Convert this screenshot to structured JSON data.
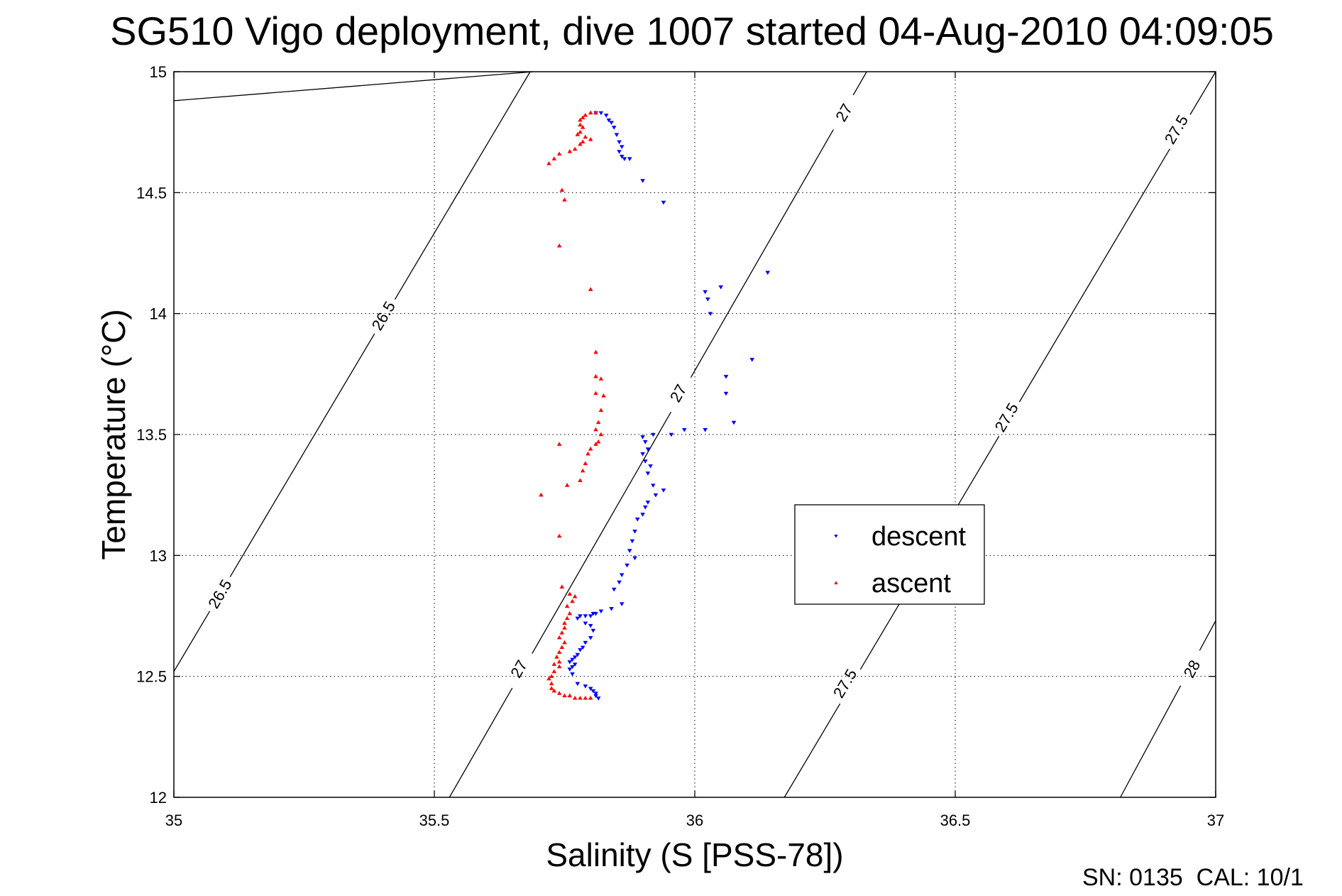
{
  "chart_data": {
    "type": "scatter",
    "title": "SG510 Vigo deployment, dive 1007 started 04-Aug-2010 04:09:05",
    "xlabel": "Salinity (S [PSS-78])",
    "ylabel": "Temperature (°C)",
    "xlim": [
      35,
      37
    ],
    "ylim": [
      12,
      15
    ],
    "xticks": [
      "35",
      "35.5",
      "36",
      "36.5",
      "37"
    ],
    "yticks": [
      "12",
      "12.5",
      "13",
      "13.5",
      "14",
      "14.5",
      "15"
    ],
    "grid": true,
    "legend_position": "center-right",
    "footer": "SN: 0135  CAL: 10/1",
    "contours": [
      {
        "label": "26.5",
        "points": [
          [
            35.0,
            14.88
          ],
          [
            35.69,
            15.0
          ]
        ],
        "labels_at": []
      },
      {
        "label": "26.5",
        "points": [
          [
            35.0,
            12.52
          ],
          [
            35.684,
            15.0
          ]
        ],
        "labels_at": [
          [
            35.403,
            13.99
          ],
          [
            35.089,
            12.84
          ]
        ]
      },
      {
        "label": "27",
        "points": [
          [
            35.529,
            12.0
          ],
          [
            36.33,
            15.0
          ]
        ],
        "labels_at": [
          [
            36.287,
            14.83
          ],
          [
            35.969,
            13.67
          ],
          [
            35.663,
            12.53
          ]
        ]
      },
      {
        "label": "27.5",
        "points": [
          [
            36.172,
            12.0
          ],
          [
            37.0,
            15.0
          ]
        ],
        "labels_at": [
          [
            36.925,
            14.76
          ],
          [
            36.599,
            13.57
          ],
          [
            36.289,
            12.47
          ]
        ]
      },
      {
        "label": "28",
        "points": [
          [
            36.817,
            12.0
          ],
          [
            37.0,
            12.73
          ]
        ],
        "labels_at": [
          [
            36.955,
            12.53
          ]
        ]
      }
    ],
    "series": [
      {
        "name": "descent",
        "color": "#0000ff",
        "marker": "triangle-down",
        "points": [
          [
            35.81,
            14.83
          ],
          [
            35.82,
            14.83
          ],
          [
            35.83,
            14.82
          ],
          [
            35.835,
            14.8
          ],
          [
            35.84,
            14.79
          ],
          [
            35.845,
            14.77
          ],
          [
            35.85,
            14.74
          ],
          [
            35.855,
            14.71
          ],
          [
            35.86,
            14.69
          ],
          [
            35.855,
            14.67
          ],
          [
            35.86,
            14.65
          ],
          [
            35.865,
            14.64
          ],
          [
            35.875,
            14.64
          ],
          [
            35.9,
            14.55
          ],
          [
            35.94,
            14.46
          ],
          [
            36.14,
            14.17
          ],
          [
            36.05,
            14.11
          ],
          [
            36.02,
            14.09
          ],
          [
            36.025,
            14.06
          ],
          [
            36.03,
            14.0
          ],
          [
            36.11,
            13.81
          ],
          [
            36.06,
            13.74
          ],
          [
            36.06,
            13.67
          ],
          [
            36.075,
            13.55
          ],
          [
            36.02,
            13.52
          ],
          [
            35.98,
            13.52
          ],
          [
            35.955,
            13.5
          ],
          [
            35.92,
            13.5
          ],
          [
            35.9,
            13.49
          ],
          [
            35.905,
            13.47
          ],
          [
            35.91,
            13.44
          ],
          [
            35.9,
            13.42
          ],
          [
            35.905,
            13.39
          ],
          [
            35.915,
            13.37
          ],
          [
            35.91,
            13.34
          ],
          [
            35.92,
            13.29
          ],
          [
            35.925,
            13.25
          ],
          [
            35.94,
            13.27
          ],
          [
            35.91,
            13.22
          ],
          [
            35.905,
            13.2
          ],
          [
            35.9,
            13.17
          ],
          [
            35.89,
            13.15
          ],
          [
            35.885,
            13.1
          ],
          [
            35.88,
            13.06
          ],
          [
            35.875,
            13.02
          ],
          [
            35.885,
            12.99
          ],
          [
            35.87,
            12.96
          ],
          [
            35.86,
            12.92
          ],
          [
            35.855,
            12.89
          ],
          [
            35.845,
            12.86
          ],
          [
            35.86,
            12.8
          ],
          [
            35.84,
            12.78
          ],
          [
            35.82,
            12.77
          ],
          [
            35.81,
            12.76
          ],
          [
            35.805,
            12.76
          ],
          [
            35.8,
            12.75
          ],
          [
            35.79,
            12.75
          ],
          [
            35.78,
            12.75
          ],
          [
            35.775,
            12.74
          ],
          [
            35.79,
            12.72
          ],
          [
            35.8,
            12.71
          ],
          [
            35.805,
            12.69
          ],
          [
            35.8,
            12.66
          ],
          [
            35.79,
            12.64
          ],
          [
            35.785,
            12.62
          ],
          [
            35.78,
            12.61
          ],
          [
            35.775,
            12.59
          ],
          [
            35.77,
            12.58
          ],
          [
            35.765,
            12.57
          ],
          [
            35.76,
            12.56
          ],
          [
            35.77,
            12.55
          ],
          [
            35.765,
            12.54
          ],
          [
            35.76,
            12.53
          ],
          [
            35.765,
            12.51
          ],
          [
            35.775,
            12.47
          ],
          [
            35.79,
            12.46
          ],
          [
            35.8,
            12.45
          ],
          [
            35.805,
            12.44
          ],
          [
            35.81,
            12.43
          ],
          [
            35.81,
            12.42
          ],
          [
            35.815,
            12.41
          ]
        ]
      },
      {
        "name": "ascent",
        "color": "#ff0000",
        "marker": "triangle-up",
        "points": [
          [
            35.81,
            14.83
          ],
          [
            35.8,
            14.83
          ],
          [
            35.79,
            14.82
          ],
          [
            35.785,
            14.81
          ],
          [
            35.78,
            14.8
          ],
          [
            35.78,
            14.78
          ],
          [
            35.785,
            14.77
          ],
          [
            35.78,
            14.75
          ],
          [
            35.775,
            14.74
          ],
          [
            35.79,
            14.73
          ],
          [
            35.8,
            14.72
          ],
          [
            35.785,
            14.71
          ],
          [
            35.78,
            14.7
          ],
          [
            35.77,
            14.68
          ],
          [
            35.76,
            14.67
          ],
          [
            35.74,
            14.66
          ],
          [
            35.73,
            14.64
          ],
          [
            35.72,
            14.62
          ],
          [
            35.745,
            14.51
          ],
          [
            35.75,
            14.47
          ],
          [
            35.74,
            14.28
          ],
          [
            35.8,
            14.1
          ],
          [
            35.81,
            13.84
          ],
          [
            35.81,
            13.74
          ],
          [
            35.82,
            13.73
          ],
          [
            35.81,
            13.67
          ],
          [
            35.825,
            13.66
          ],
          [
            35.82,
            13.6
          ],
          [
            35.815,
            13.55
          ],
          [
            35.81,
            13.52
          ],
          [
            35.82,
            13.5
          ],
          [
            35.815,
            13.47
          ],
          [
            35.81,
            13.46
          ],
          [
            35.8,
            13.44
          ],
          [
            35.795,
            13.42
          ],
          [
            35.79,
            13.38
          ],
          [
            35.785,
            13.35
          ],
          [
            35.78,
            13.31
          ],
          [
            35.74,
            13.46
          ],
          [
            35.755,
            13.29
          ],
          [
            35.705,
            13.25
          ],
          [
            35.74,
            13.08
          ],
          [
            35.745,
            12.87
          ],
          [
            35.76,
            12.84
          ],
          [
            35.77,
            12.83
          ],
          [
            35.765,
            12.81
          ],
          [
            35.755,
            12.79
          ],
          [
            35.76,
            12.76
          ],
          [
            35.755,
            12.74
          ],
          [
            35.75,
            12.72
          ],
          [
            35.75,
            12.7
          ],
          [
            35.745,
            12.68
          ],
          [
            35.74,
            12.66
          ],
          [
            35.75,
            12.64
          ],
          [
            35.745,
            12.62
          ],
          [
            35.74,
            12.6
          ],
          [
            35.735,
            12.58
          ],
          [
            35.74,
            12.56
          ],
          [
            35.73,
            12.55
          ],
          [
            35.74,
            12.54
          ],
          [
            35.73,
            12.52
          ],
          [
            35.725,
            12.5
          ],
          [
            35.72,
            12.49
          ],
          [
            35.725,
            12.47
          ],
          [
            35.725,
            12.45
          ],
          [
            35.73,
            12.44
          ],
          [
            35.74,
            12.43
          ],
          [
            35.75,
            12.42
          ],
          [
            35.76,
            12.42
          ],
          [
            35.77,
            12.41
          ],
          [
            35.78,
            12.41
          ],
          [
            35.79,
            12.41
          ],
          [
            35.8,
            12.41
          ]
        ]
      }
    ]
  }
}
